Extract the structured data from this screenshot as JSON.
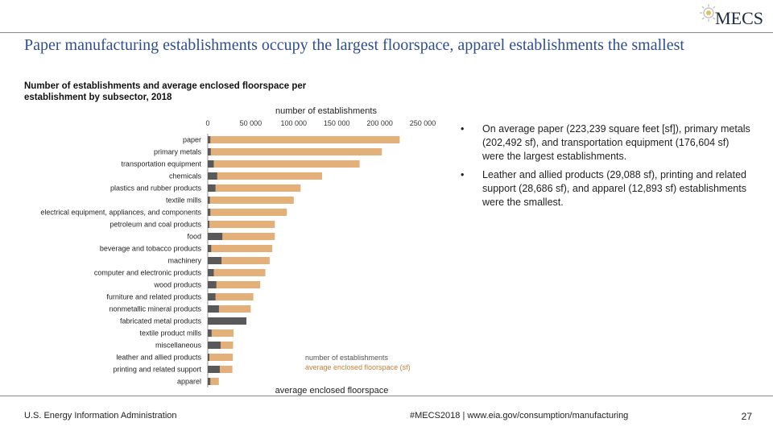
{
  "header": {
    "logo_text": "MECS",
    "logo_icon": "gear-sun-icon"
  },
  "title": "Paper manufacturing establishments occupy the largest floorspace, apparel establishments the smallest",
  "subtitle": "Number of establishments and average enclosed floorspace per establishment by subsector, 2018",
  "chart_data": {
    "type": "bar",
    "orientation": "horizontal",
    "top_axis_label": "number of establishments",
    "bottom_axis_label": "average enclosed floorspace",
    "ticks": [
      0,
      50000,
      100000,
      150000,
      200000,
      250000
    ],
    "tick_labels": [
      "0",
      "50 000",
      "100 000",
      "150 000",
      "200 000",
      "250 000"
    ],
    "xlim": [
      0,
      250000
    ],
    "categories": [
      "paper",
      "primary metals",
      "transportation equipment",
      "chemicals",
      "plastics and rubber products",
      "textile mills",
      "electrical equipment, appliances, and components",
      "petroleum and coal products",
      "food",
      "beverage and tobacco products",
      "machinery",
      "computer and electronic products",
      "wood products",
      "furniture and related products",
      "nonmetallic mineral products",
      "fabricated metal products",
      "textile product mills",
      "miscellaneous",
      "leather and allied products",
      "printing and related support",
      "apparel"
    ],
    "series": [
      {
        "name": "number of establishments",
        "color": "#595959",
        "values": [
          3000,
          3500,
          7000,
          11000,
          9000,
          2500,
          3000,
          1500,
          17000,
          4000,
          16000,
          7000,
          10000,
          9000,
          13000,
          45000,
          4500,
          15000,
          1000,
          14000,
          3000
        ]
      },
      {
        "name": "average enclosed floorspace (sf)",
        "color": "#e3b07a",
        "values": [
          223239,
          202492,
          176604,
          133000,
          108000,
          100000,
          92000,
          78000,
          78000,
          75000,
          72000,
          67000,
          61000,
          53000,
          50000,
          42000,
          30000,
          29500,
          29088,
          28686,
          12893
        ]
      }
    ],
    "legend": {
      "position": "bottom-center"
    }
  },
  "bullets": [
    {
      "marker": "•",
      "text": "On average paper (223,239 square feet [sf]), primary metals (202,492 sf), and transportation equipment (176,604 sf) were the largest establishments."
    },
    {
      "marker": "•",
      "text": "Leather and allied products (29,088 sf), printing and related support (28,686 sf), and apparel (12,893 sf) establishments were the smallest."
    }
  ],
  "footer": {
    "source": "U.S. Energy Information Administration",
    "tag": "#MECS2018",
    "separator": "|",
    "url": "www.eia.gov/consumption/manufacturing",
    "page_number": "27"
  },
  "colors": {
    "title": "#2e4f8c",
    "rule": "#8a8a8a",
    "legend_floor": "#c9813a"
  }
}
